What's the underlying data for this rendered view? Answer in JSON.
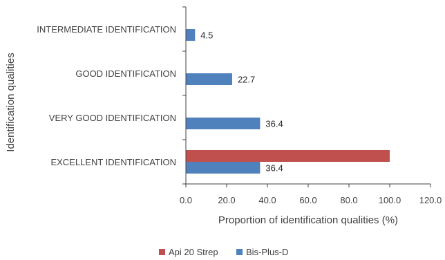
{
  "chart_data": {
    "type": "bar",
    "orientation": "horizontal",
    "categories": [
      "EXCELLENT IDENTIFICATION",
      "VERY GOOD IDENTIFICATION",
      "GOOD IDENTIFICATION",
      "INTERMEDIATE IDENTIFICATION"
    ],
    "series": [
      {
        "name": "Api 20 Strep",
        "color": "#C0504D",
        "values": [
          100.0,
          null,
          null,
          null
        ],
        "labels": [
          "",
          "",
          "",
          ""
        ]
      },
      {
        "name": "Bis-Plus-D",
        "color": "#4F81BD",
        "values": [
          36.4,
          36.4,
          22.7,
          4.5
        ],
        "labels": [
          "36.4",
          "36.4",
          "22.7",
          "4.5"
        ]
      }
    ],
    "xlim": [
      0,
      120
    ],
    "x_ticks": [
      "0.0",
      "20.0",
      "40.0",
      "60.0",
      "80.0",
      "100.0",
      "120.0"
    ],
    "xlabel": "Proportion of identification qualities (%)",
    "ylabel": "Identification qualities",
    "legend": {
      "position": "bottom",
      "entries": [
        "Api 20 Strep",
        "Bis-Plus-D"
      ]
    },
    "grid": false
  }
}
